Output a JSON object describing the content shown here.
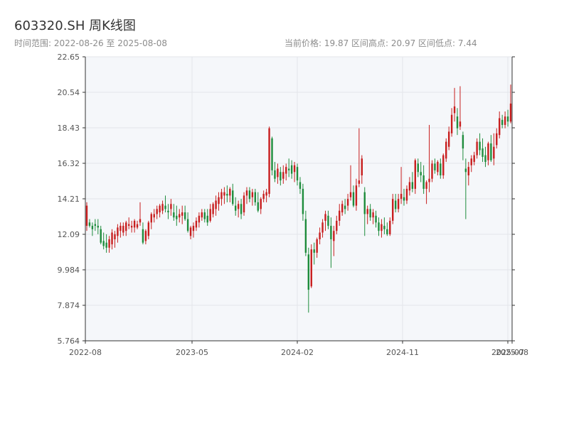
{
  "header": {
    "title": "603320.SH 周K线图",
    "range_text": "时间范围: 2022-08-26 至 2025-08-08",
    "stats_text": "当前价格: 19.87   区间高点: 20.97   区间低点: 7.44"
  },
  "colors": {
    "up": "#c81e1e",
    "down": "#1e8c3c",
    "plot_bg": "#f5f7fa",
    "grid": "#e3e6ea"
  },
  "chart_data": {
    "type": "candlestick",
    "title": "603320.SH 周K线图",
    "y_ticks": [
      "5.764",
      "7.874",
      "9.984",
      "12.09",
      "14.21",
      "16.32",
      "18.43",
      "20.54",
      "22.65"
    ],
    "ylim": [
      5.764,
      22.65
    ],
    "x_ticks": [
      "2022-08",
      "2023-05",
      "2024-02",
      "2024-11",
      "2025-07",
      "2025-08"
    ],
    "grid": true,
    "candles": [
      [
        12.6,
        14.0,
        12.3,
        13.8
      ],
      [
        12.8,
        13.0,
        12.5,
        12.6
      ],
      [
        12.6,
        12.8,
        12.0,
        12.4
      ],
      [
        12.7,
        13.0,
        12.3,
        12.6
      ],
      [
        12.6,
        13.0,
        12.1,
        12.5
      ],
      [
        12.4,
        12.6,
        11.5,
        11.6
      ],
      [
        11.7,
        12.2,
        11.2,
        11.4
      ],
      [
        11.6,
        12.1,
        11.0,
        11.3
      ],
      [
        11.3,
        12.0,
        11.0,
        11.8
      ],
      [
        11.5,
        12.4,
        11.2,
        12.2
      ],
      [
        11.8,
        12.3,
        11.3,
        12.1
      ],
      [
        12.0,
        12.7,
        11.6,
        12.5
      ],
      [
        12.3,
        12.8,
        11.9,
        12.6
      ],
      [
        12.2,
        12.8,
        12.0,
        12.6
      ],
      [
        12.3,
        12.9,
        12.0,
        12.8
      ],
      [
        12.6,
        13.1,
        12.4,
        12.7
      ],
      [
        12.5,
        12.9,
        12.2,
        12.6
      ],
      [
        12.5,
        13.0,
        12.2,
        12.9
      ],
      [
        12.5,
        12.9,
        12.4,
        12.7
      ],
      [
        12.8,
        14.0,
        12.6,
        13.0
      ],
      [
        12.4,
        12.8,
        11.5,
        11.6
      ],
      [
        11.7,
        12.4,
        11.5,
        12.3
      ],
      [
        12.0,
        12.9,
        11.8,
        12.8
      ],
      [
        12.8,
        13.4,
        12.4,
        13.3
      ],
      [
        13.1,
        13.6,
        12.8,
        13.3
      ],
      [
        13.3,
        13.8,
        13.0,
        13.6
      ],
      [
        13.4,
        13.9,
        13.1,
        13.8
      ],
      [
        13.5,
        14.1,
        13.3,
        13.9
      ],
      [
        13.8,
        14.4,
        13.4,
        13.6
      ],
      [
        13.5,
        13.9,
        13.0,
        13.4
      ],
      [
        13.6,
        14.2,
        13.2,
        13.9
      ],
      [
        13.4,
        13.9,
        12.9,
        13.1
      ],
      [
        13.2,
        13.8,
        12.6,
        13.0
      ],
      [
        13.1,
        13.6,
        12.8,
        13.3
      ],
      [
        13.2,
        13.8,
        12.7,
        13.4
      ],
      [
        13.4,
        13.8,
        12.9,
        13.0
      ],
      [
        13.0,
        13.4,
        12.2,
        12.3
      ],
      [
        12.0,
        12.6,
        11.8,
        12.5
      ],
      [
        12.3,
        12.8,
        11.9,
        12.6
      ],
      [
        12.5,
        13.1,
        12.3,
        12.9
      ],
      [
        12.8,
        13.4,
        12.5,
        13.2
      ],
      [
        13.1,
        13.6,
        12.9,
        13.4
      ],
      [
        13.4,
        13.6,
        12.8,
        13.0
      ],
      [
        13.2,
        13.6,
        12.6,
        12.8
      ],
      [
        12.9,
        13.9,
        12.8,
        13.6
      ],
      [
        13.3,
        14.0,
        13.1,
        13.9
      ],
      [
        13.6,
        14.4,
        13.2,
        14.1
      ],
      [
        13.9,
        14.6,
        13.5,
        14.3
      ],
      [
        14.2,
        14.8,
        13.8,
        14.6
      ],
      [
        14.4,
        14.9,
        13.9,
        14.6
      ],
      [
        14.5,
        15.0,
        14.0,
        14.4
      ],
      [
        14.4,
        14.9,
        14.0,
        14.8
      ],
      [
        14.7,
        15.1,
        13.8,
        13.9
      ],
      [
        13.8,
        14.3,
        13.2,
        13.5
      ],
      [
        13.6,
        14.1,
        13.1,
        13.9
      ],
      [
        13.9,
        14.2,
        13.0,
        13.3
      ],
      [
        13.4,
        14.6,
        13.2,
        14.4
      ],
      [
        14.4,
        14.9,
        13.9,
        14.7
      ],
      [
        14.7,
        14.9,
        14.0,
        14.2
      ],
      [
        14.3,
        14.8,
        13.8,
        14.6
      ],
      [
        14.6,
        14.8,
        13.8,
        14.0
      ],
      [
        14.0,
        14.6,
        13.4,
        13.5
      ],
      [
        13.6,
        14.3,
        13.3,
        14.2
      ],
      [
        14.2,
        14.7,
        14.0,
        14.5
      ],
      [
        14.4,
        14.8,
        14.0,
        14.6
      ],
      [
        14.5,
        18.5,
        14.3,
        18.4
      ],
      [
        17.8,
        17.9,
        15.6,
        15.9
      ],
      [
        15.9,
        16.4,
        15.2,
        15.4
      ],
      [
        15.5,
        16.3,
        15.1,
        16.0
      ],
      [
        15.8,
        16.1,
        15.0,
        15.3
      ],
      [
        15.4,
        16.2,
        15.1,
        15.8
      ],
      [
        15.7,
        16.3,
        15.3,
        16.1
      ],
      [
        16.0,
        16.6,
        15.5,
        15.9
      ],
      [
        16.2,
        16.5,
        15.4,
        15.7
      ],
      [
        15.8,
        16.4,
        15.2,
        16.2
      ],
      [
        16.1,
        16.3,
        15.0,
        15.3
      ],
      [
        15.2,
        15.5,
        14.5,
        14.8
      ],
      [
        14.8,
        15.1,
        12.9,
        13.3
      ],
      [
        13.0,
        13.5,
        10.8,
        11.0
      ],
      [
        10.9,
        11.3,
        7.44,
        8.8
      ],
      [
        9.0,
        11.5,
        8.9,
        11.2
      ],
      [
        11.2,
        11.6,
        10.3,
        11.0
      ],
      [
        11.0,
        11.9,
        10.7,
        11.8
      ],
      [
        11.8,
        12.5,
        11.5,
        12.2
      ],
      [
        12.2,
        13.0,
        11.9,
        12.8
      ],
      [
        12.9,
        13.5,
        12.3,
        13.3
      ],
      [
        13.2,
        13.5,
        12.4,
        12.6
      ],
      [
        12.6,
        13.1,
        10.1,
        11.8
      ],
      [
        11.7,
        12.6,
        10.8,
        12.3
      ],
      [
        12.3,
        13.2,
        12.1,
        12.9
      ],
      [
        12.9,
        13.9,
        12.6,
        13.5
      ],
      [
        13.4,
        14.1,
        13.2,
        13.9
      ],
      [
        13.8,
        14.2,
        13.3,
        13.6
      ],
      [
        13.8,
        14.5,
        13.5,
        14.2
      ],
      [
        14.3,
        16.2,
        14.1,
        14.6
      ],
      [
        14.6,
        15.0,
        13.7,
        13.8
      ],
      [
        13.8,
        15.4,
        13.5,
        15.0
      ],
      [
        15.1,
        18.4,
        14.9,
        15.3
      ],
      [
        15.6,
        16.8,
        15.1,
        16.6
      ],
      [
        14.6,
        14.9,
        12.0,
        13.3
      ],
      [
        13.3,
        13.8,
        12.7,
        13.6
      ],
      [
        13.6,
        13.9,
        12.9,
        13.1
      ],
      [
        13.1,
        13.6,
        12.7,
        13.4
      ],
      [
        13.2,
        13.5,
        12.5,
        12.8
      ],
      [
        12.8,
        13.1,
        12.0,
        12.3
      ],
      [
        12.3,
        13.0,
        11.9,
        12.7
      ],
      [
        12.6,
        13.1,
        12.1,
        12.4
      ],
      [
        12.4,
        12.8,
        12.0,
        12.1
      ],
      [
        12.1,
        13.1,
        12.0,
        12.9
      ],
      [
        12.9,
        14.5,
        12.7,
        14.2
      ],
      [
        14.1,
        14.5,
        13.4,
        13.6
      ],
      [
        13.6,
        14.5,
        13.4,
        14.2
      ],
      [
        14.2,
        16.1,
        13.9,
        14.5
      ],
      [
        14.3,
        14.8,
        13.8,
        14.1
      ],
      [
        14.1,
        15.0,
        13.9,
        14.8
      ],
      [
        14.7,
        15.5,
        14.4,
        15.2
      ],
      [
        15.2,
        15.8,
        14.6,
        14.8
      ],
      [
        14.8,
        16.6,
        14.5,
        16.5
      ],
      [
        16.3,
        16.6,
        15.5,
        15.8
      ],
      [
        15.8,
        16.4,
        15.2,
        15.6
      ],
      [
        15.6,
        16.2,
        14.5,
        14.8
      ],
      [
        14.8,
        15.3,
        13.9,
        15.2
      ],
      [
        15.2,
        18.6,
        14.6,
        15.4
      ],
      [
        15.4,
        16.5,
        15.2,
        16.3
      ],
      [
        16.3,
        16.6,
        15.7,
        15.9
      ],
      [
        15.8,
        16.5,
        15.6,
        16.4
      ],
      [
        16.3,
        16.6,
        15.4,
        15.6
      ],
      [
        15.6,
        16.9,
        15.4,
        16.8
      ],
      [
        16.6,
        17.8,
        16.4,
        17.6
      ],
      [
        17.3,
        18.5,
        17.1,
        18.2
      ],
      [
        18.1,
        19.6,
        17.9,
        19.2
      ],
      [
        19.3,
        20.8,
        18.8,
        19.7
      ],
      [
        19.1,
        19.6,
        18.0,
        18.4
      ],
      [
        18.5,
        20.9,
        18.3,
        18.8
      ],
      [
        18.0,
        18.2,
        16.5,
        17.2
      ],
      [
        16.0,
        16.6,
        13.0,
        15.8
      ],
      [
        15.6,
        16.4,
        15.0,
        16.1
      ],
      [
        16.2,
        16.8,
        15.8,
        16.6
      ],
      [
        16.4,
        17.0,
        16.2,
        16.8
      ],
      [
        16.8,
        17.8,
        16.6,
        17.6
      ],
      [
        17.6,
        18.1,
        16.8,
        17.1
      ],
      [
        17.2,
        17.8,
        16.4,
        16.7
      ],
      [
        16.8,
        17.3,
        16.1,
        16.4
      ],
      [
        16.5,
        17.6,
        16.2,
        17.5
      ],
      [
        17.5,
        18.0,
        16.4,
        16.5
      ],
      [
        16.6,
        18.1,
        16.2,
        17.3
      ],
      [
        17.4,
        18.4,
        17.2,
        18.1
      ],
      [
        18.0,
        19.4,
        17.8,
        19.0
      ],
      [
        18.9,
        19.2,
        18.4,
        18.6
      ],
      [
        18.6,
        19.4,
        18.4,
        19.1
      ],
      [
        19.1,
        19.5,
        18.5,
        18.8
      ],
      [
        18.8,
        21.0,
        18.7,
        19.87
      ]
    ]
  }
}
